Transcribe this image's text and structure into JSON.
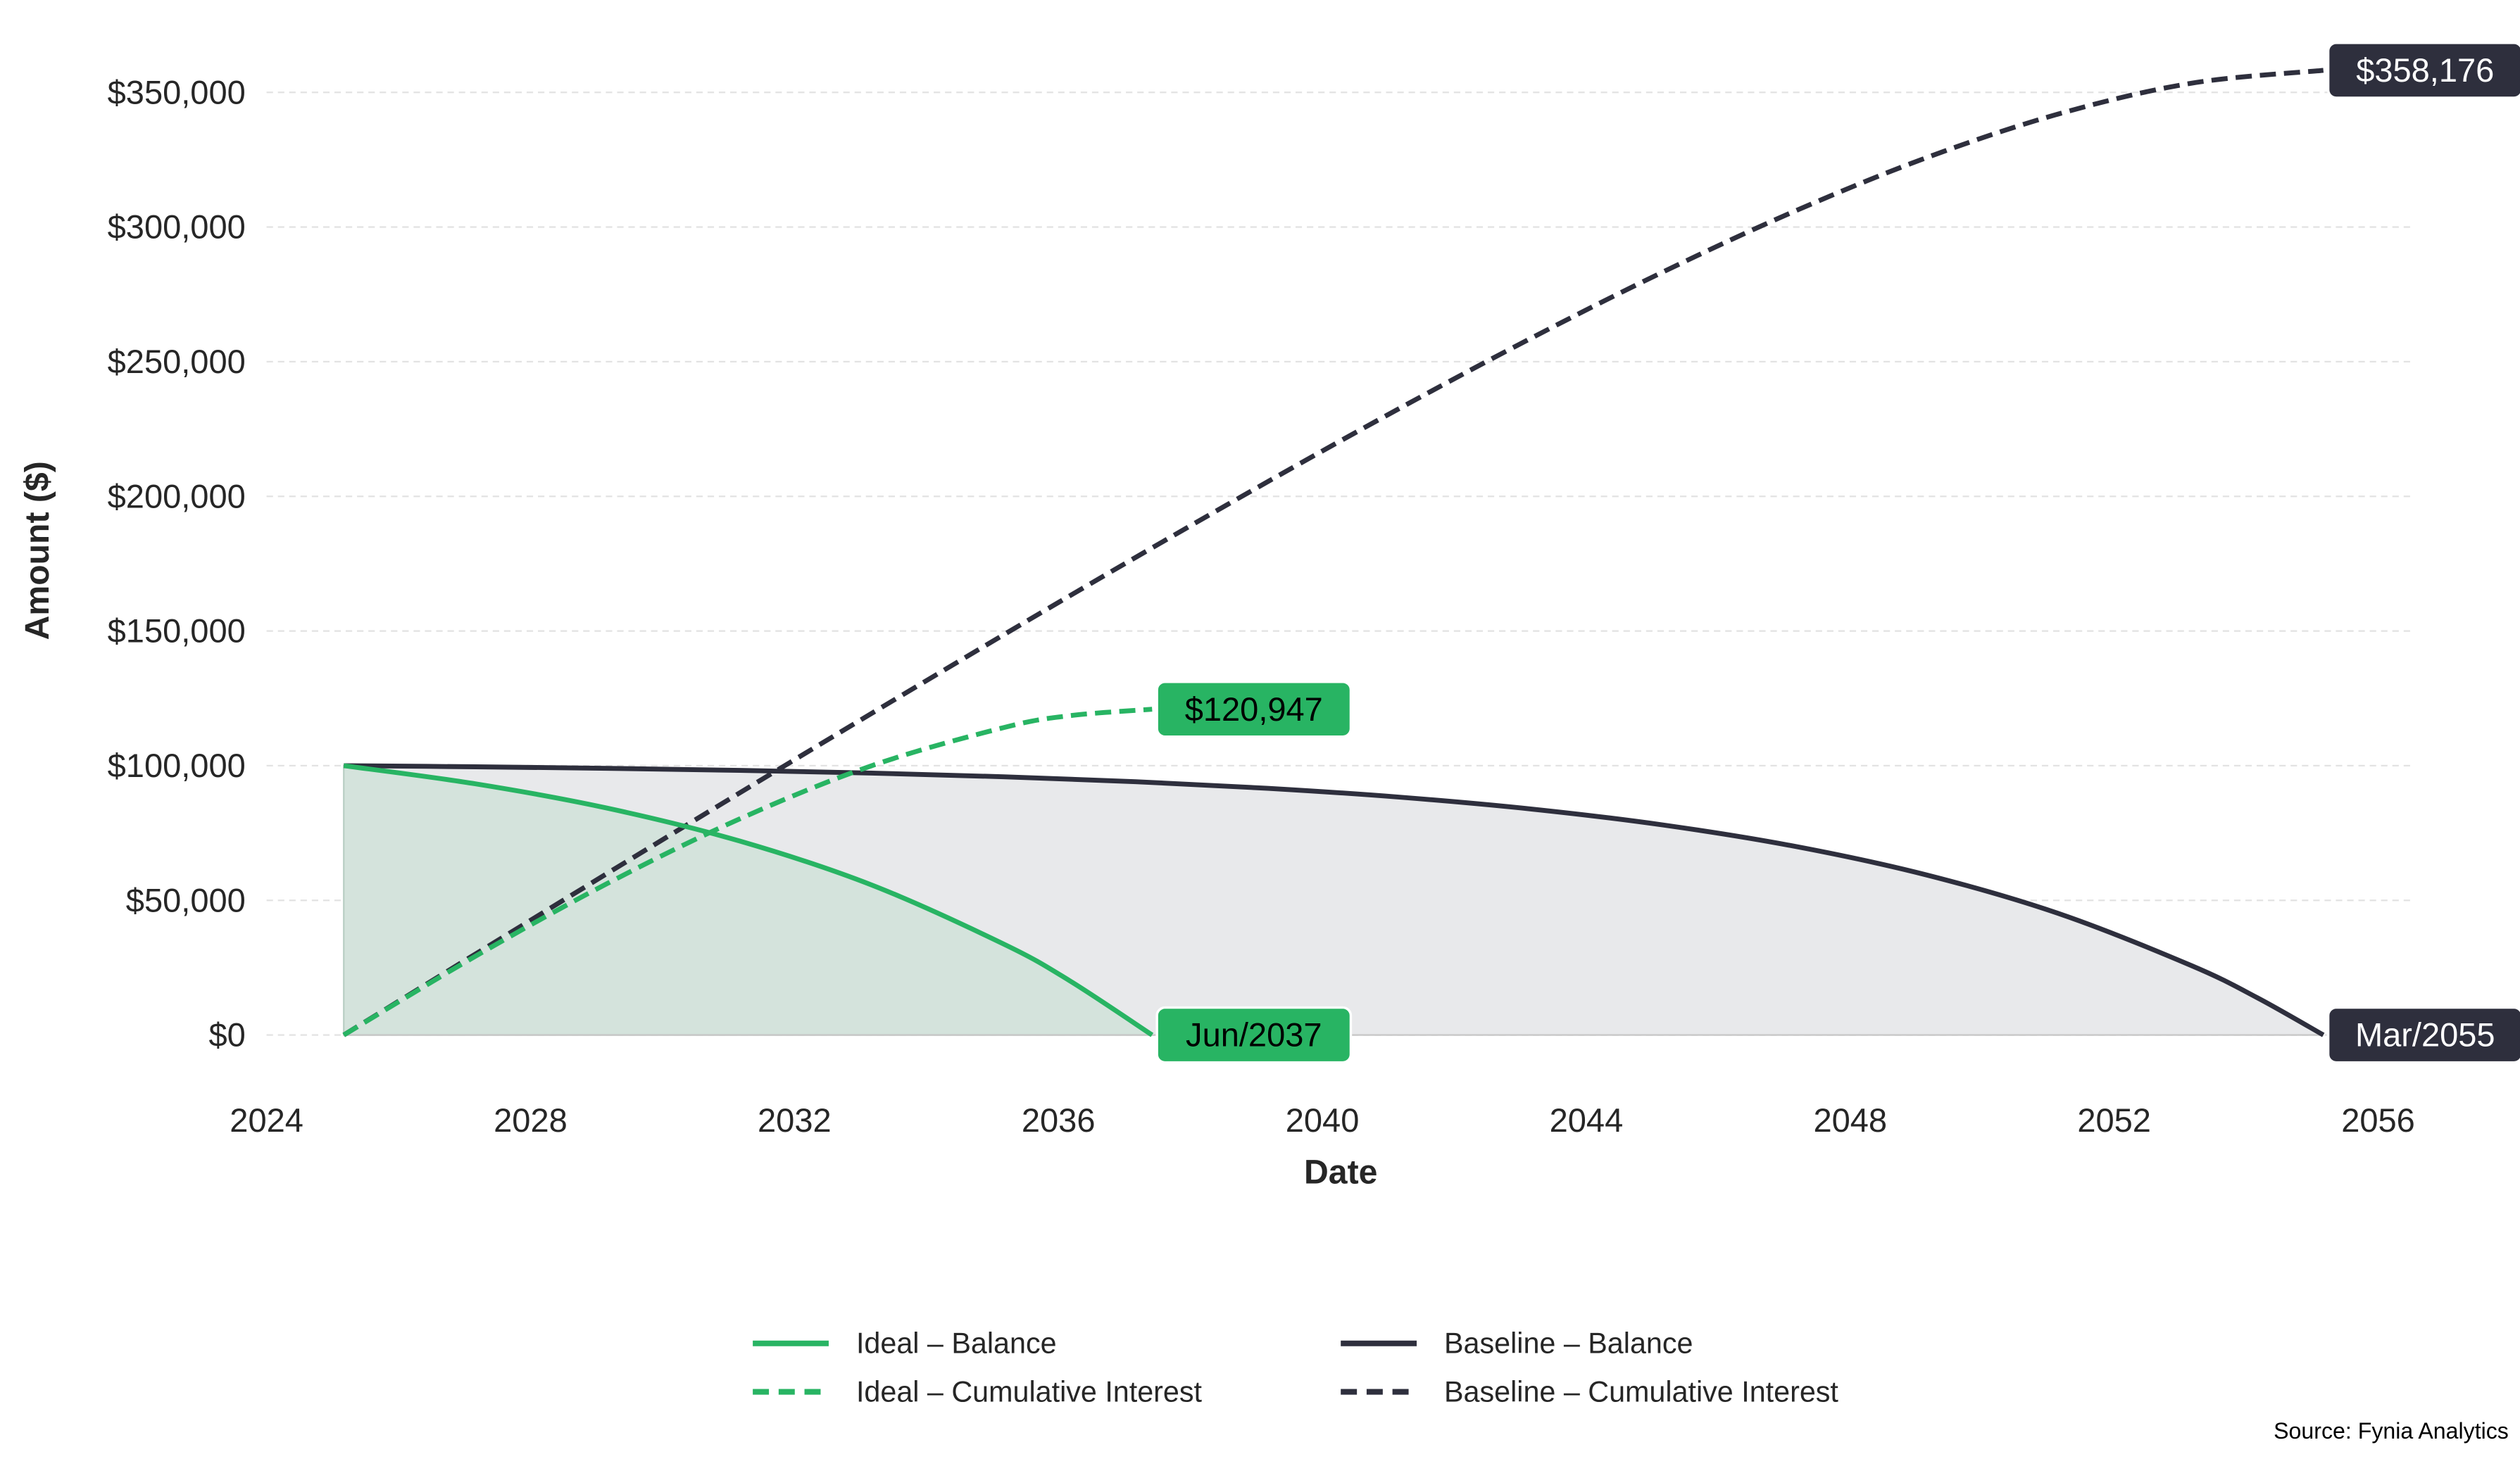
{
  "chart_data": {
    "type": "line",
    "title": "",
    "xlabel": "Date",
    "ylabel": "Amount ($)",
    "xlim": [
      2024,
      2056.6
    ],
    "ylim": [
      -20000,
      370000
    ],
    "x_ticks": [
      2024,
      2028,
      2032,
      2036,
      2040,
      2044,
      2048,
      2052,
      2056
    ],
    "x_tick_labels": [
      "2024",
      "2028",
      "2032",
      "2036",
      "2040",
      "2044",
      "2048",
      "2052",
      "2056"
    ],
    "y_ticks": [
      0,
      50000,
      100000,
      150000,
      200000,
      250000,
      300000,
      350000
    ],
    "y_tick_labels": [
      "$0",
      "$50,000",
      "$100,000",
      "$150,000",
      "$200,000",
      "$250,000",
      "$300,000",
      "$350,000"
    ],
    "grid": "horizontal dashed",
    "legend_placement": "bottom-center",
    "colors": {
      "ideal": "#28b463",
      "baseline": "#2e2f3d",
      "ideal_fill": "#d4e3dc",
      "baseline_fill": "#e8e9eb",
      "grid": "#e3e3e3"
    },
    "series": [
      {
        "name": "Ideal – Balance",
        "style": "solid",
        "color": "#28b463",
        "fill": true,
        "x": [
          2025.17,
          2027.17,
          2029.17,
          2031.17,
          2033.17,
          2035.17,
          2036.17,
          2037.42
        ],
        "y": [
          100000,
          93241,
          84190,
          72016,
          55692,
          33775,
          20158,
          0
        ]
      },
      {
        "name": "Ideal – Cumulative Interest",
        "style": "dashed",
        "color": "#28b463",
        "x": [
          2025.17,
          2027.17,
          2029.17,
          2031.17,
          2033.17,
          2035.17,
          2036.17,
          2037.42
        ],
        "y": [
          0,
          29313,
          56334,
          80232,
          99980,
          114135,
          118554,
          120947
        ]
      },
      {
        "name": "Baseline – Balance",
        "style": "solid",
        "color": "#2e2f3d",
        "fill": true,
        "x": [
          2025.17,
          2027.17,
          2029.17,
          2031.17,
          2033.17,
          2035.17,
          2037.17,
          2039.17,
          2041.17,
          2043.17,
          2045.17,
          2047.17,
          2049.17,
          2051.17,
          2053.17,
          2054.17,
          2055.17
        ],
        "y": [
          100000,
          99580,
          99017,
          98260,
          97245,
          95883,
          94055,
          91602,
          88310,
          83894,
          77960,
          70012,
          59336,
          45000,
          25774,
          13821,
          0
        ]
      },
      {
        "name": "Baseline – Cumulative Interest",
        "style": "dashed",
        "color": "#2e2f3d",
        "x": [
          2025.17,
          2027.17,
          2029.17,
          2031.17,
          2033.17,
          2035.17,
          2037.17,
          2039.17,
          2041.17,
          2043.17,
          2045.17,
          2047.17,
          2049.17,
          2051.17,
          2053.17,
          2055.17
        ],
        "y": [
          0,
          30125,
          60107,
          89894,
          119424,
          148607,
          177324,
          205416,
          232668,
          258797,
          283408,
          306005,
          325874,
          342082,
          353401,
          358176
        ]
      }
    ],
    "annotations": [
      {
        "text": "$120,947",
        "x": 2037.42,
        "y": 120947,
        "bg": "#28b463",
        "fg": "#000000"
      },
      {
        "text": "Jun/2037",
        "x": 2037.42,
        "y": 0,
        "bg": "#28b463",
        "fg": "#000000"
      },
      {
        "text": "$358,176",
        "x": 2055.17,
        "y": 358176,
        "bg": "#2e2f3d",
        "fg": "#ffffff"
      },
      {
        "text": "Mar/2055",
        "x": 2055.17,
        "y": 0,
        "bg": "#2e2f3d",
        "fg": "#ffffff"
      }
    ],
    "source": "Source: Fynia Analytics"
  }
}
